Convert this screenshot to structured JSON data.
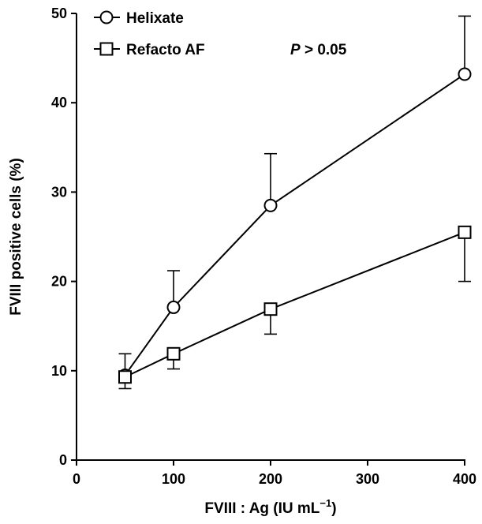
{
  "chart_data": {
    "type": "line",
    "xlabel_main": "FVIII : Ag (IU mL",
    "xlabel_sup": "−1",
    "xlabel_close": ")",
    "ylabel": "FVIII positive cells (%)",
    "xlim": [
      0,
      400
    ],
    "ylim": [
      0,
      50
    ],
    "xticks": [
      0,
      100,
      200,
      300,
      400
    ],
    "yticks": [
      0,
      10,
      20,
      30,
      40,
      50
    ],
    "annotation_italic": "P",
    "annotation_rest": " > 0.05",
    "legend_position": "top-left",
    "series": [
      {
        "name": "Helixate",
        "marker": "circle",
        "x": [
          50,
          100,
          200,
          400
        ],
        "y": [
          9.5,
          17.1,
          28.5,
          43.2
        ],
        "error_plus": [
          2.4,
          4.1,
          5.8,
          6.5
        ]
      },
      {
        "name": "Refacto AF",
        "marker": "square",
        "x": [
          50,
          100,
          200,
          400
        ],
        "y": [
          9.3,
          11.9,
          16.9,
          25.5
        ],
        "error_minus": [
          1.3,
          1.7,
          2.8,
          5.5
        ]
      }
    ]
  }
}
